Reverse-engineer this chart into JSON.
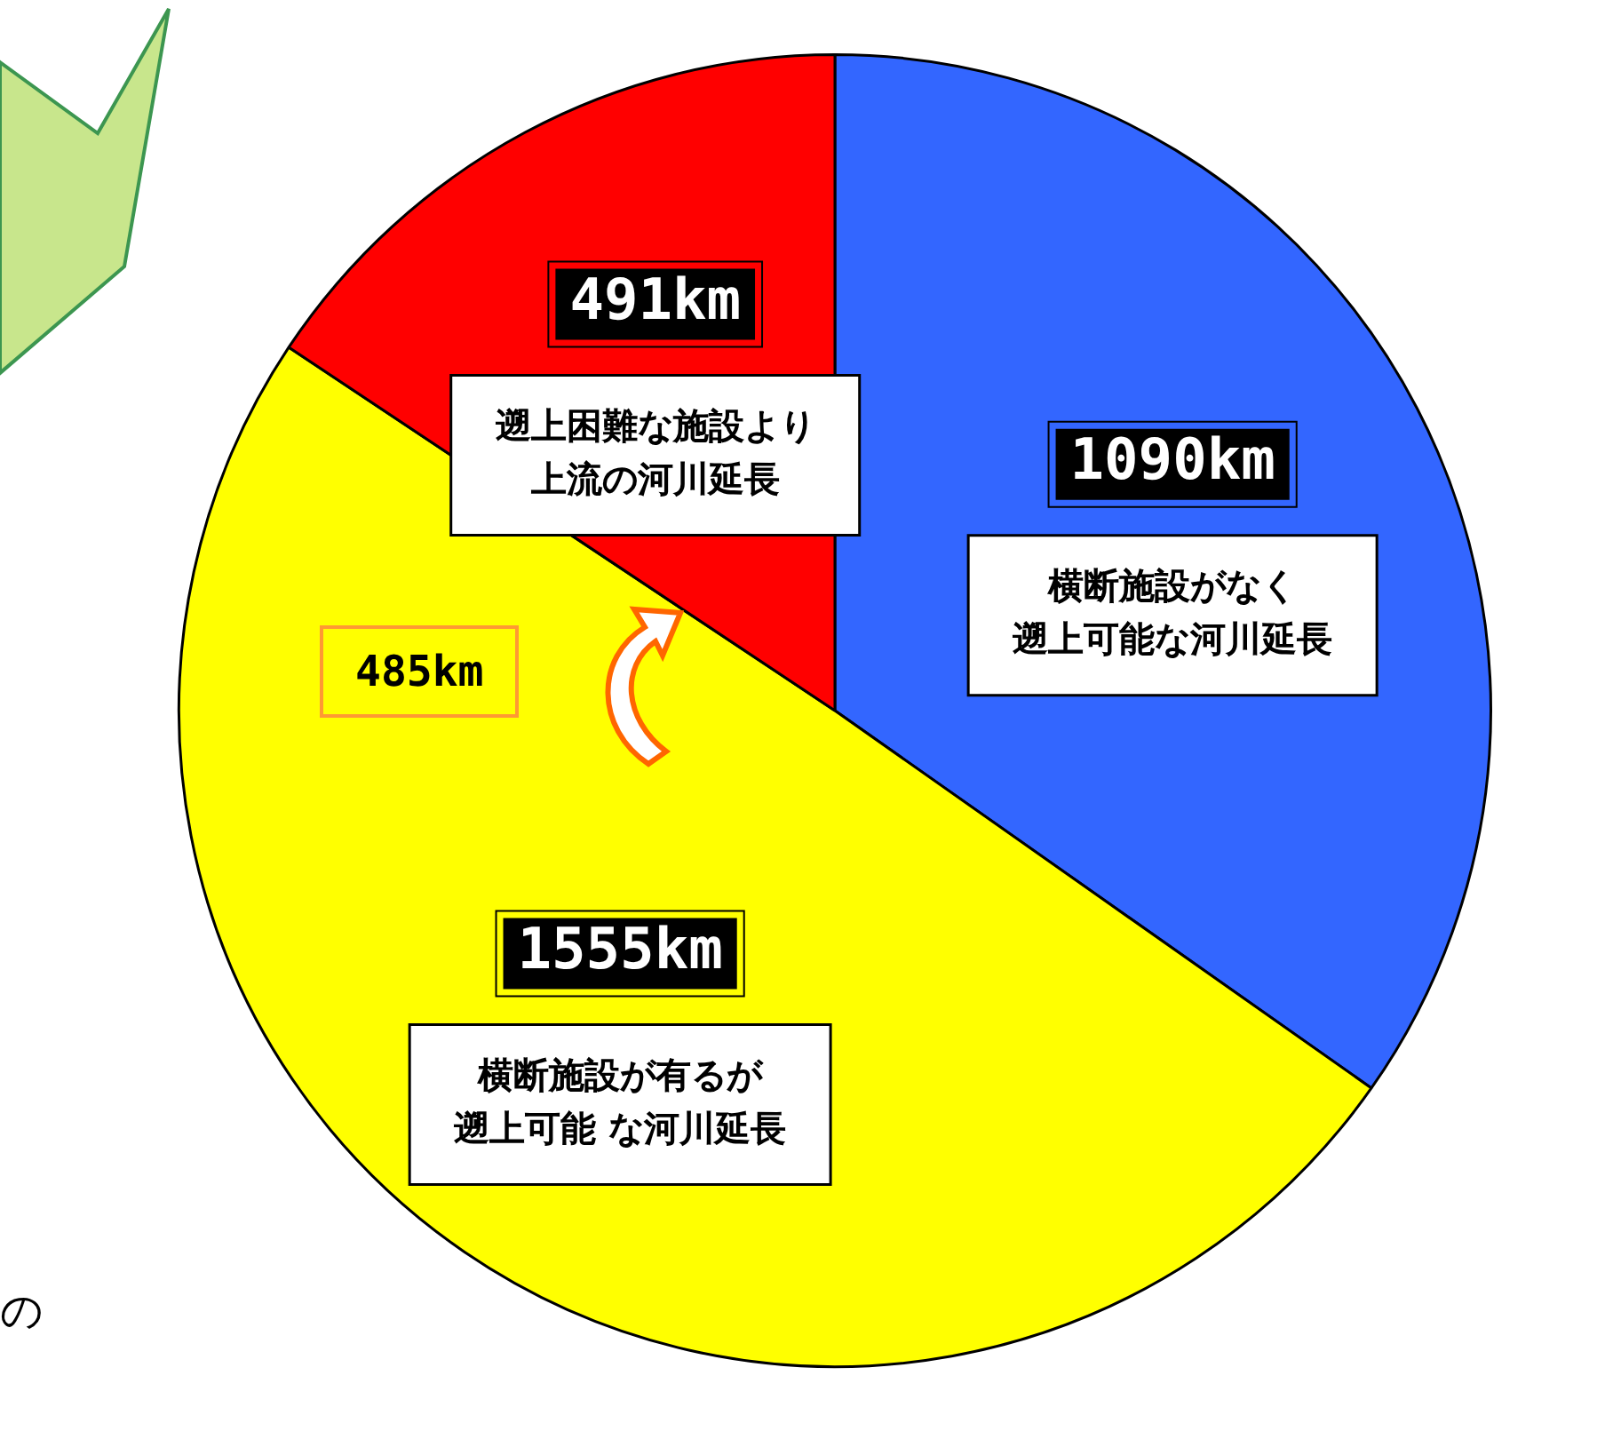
{
  "chart_data": {
    "type": "pie",
    "categories": [
      "横断施設がなく遡上可能な河川延長",
      "横断施設が有るが遡上可能 な河川延長",
      "遡上困難な施設より上流の河川延長"
    ],
    "values": [
      1090,
      1555,
      491
    ],
    "colors": [
      "#3366ff",
      "#ffff00",
      "#ff0000"
    ],
    "value_labels": [
      "1090km",
      "1555km",
      "491km"
    ],
    "annotations": [
      "485km",
      "の"
    ],
    "legend": false
  }
}
